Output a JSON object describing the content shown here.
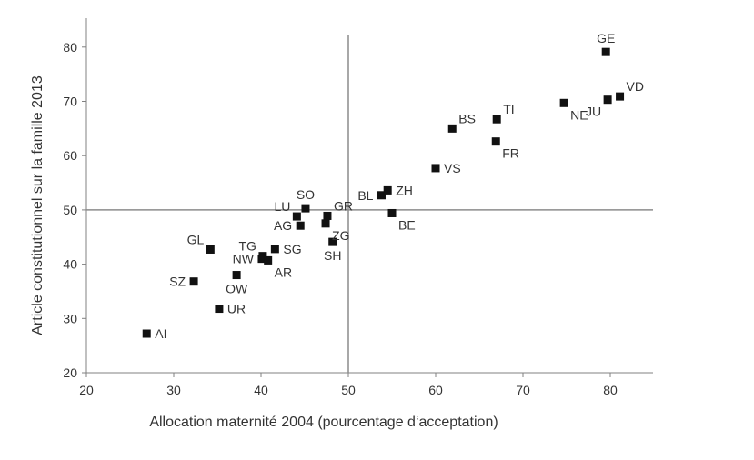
{
  "chart_data": {
    "type": "scatter",
    "xlabel": "Allocation maternité 2004 (pourcentage d‘acceptation)",
    "ylabel": "Article constitutionnel sur la famille 2013",
    "xlim": [
      20,
      85
    ],
    "ylim": [
      20,
      85
    ],
    "xticks": [
      20,
      30,
      40,
      50,
      60,
      70,
      80
    ],
    "yticks": [
      20,
      30,
      40,
      50,
      60,
      70,
      80
    ],
    "reference_lines": {
      "x": 50,
      "y": 50
    },
    "grid": false,
    "points": [
      {
        "label": "AI",
        "x": 26.9,
        "y": 27.2,
        "label_pos": "right"
      },
      {
        "label": "UR",
        "x": 35.2,
        "y": 31.8,
        "label_pos": "right"
      },
      {
        "label": "SZ",
        "x": 32.3,
        "y": 36.8,
        "label_pos": "left"
      },
      {
        "label": "OW",
        "x": 37.2,
        "y": 38.0,
        "label_pos": "below"
      },
      {
        "label": "GL",
        "x": 34.2,
        "y": 42.7,
        "label_pos": "above-left"
      },
      {
        "label": "NW",
        "x": 40.1,
        "y": 41.0,
        "label_pos": "left"
      },
      {
        "label": "TG",
        "x": 40.2,
        "y": 41.5,
        "label_pos": "above-left"
      },
      {
        "label": "AR",
        "x": 40.8,
        "y": 40.7,
        "label_pos": "below-right"
      },
      {
        "label": "SG",
        "x": 41.6,
        "y": 42.8,
        "label_pos": "right"
      },
      {
        "label": "AG",
        "x": 44.5,
        "y": 47.1,
        "label_pos": "left"
      },
      {
        "label": "LU",
        "x": 44.1,
        "y": 48.8,
        "label_pos": "above-left"
      },
      {
        "label": "SO",
        "x": 45.1,
        "y": 50.3,
        "label_pos": "above"
      },
      {
        "label": "GR",
        "x": 47.6,
        "y": 48.9,
        "label_pos": "above-right"
      },
      {
        "label": "ZG",
        "x": 47.4,
        "y": 47.5,
        "label_pos": "below-right"
      },
      {
        "label": "SH",
        "x": 48.2,
        "y": 44.1,
        "label_pos": "below"
      },
      {
        "label": "BL",
        "x": 53.8,
        "y": 52.7,
        "label_pos": "left"
      },
      {
        "label": "ZH",
        "x": 54.5,
        "y": 53.6,
        "label_pos": "right"
      },
      {
        "label": "BE",
        "x": 55.0,
        "y": 49.4,
        "label_pos": "below-right"
      },
      {
        "label": "VS",
        "x": 60.0,
        "y": 57.7,
        "label_pos": "right"
      },
      {
        "label": "BS",
        "x": 61.9,
        "y": 65.0,
        "label_pos": "above-right"
      },
      {
        "label": "TI",
        "x": 67.0,
        "y": 66.7,
        "label_pos": "above-right"
      },
      {
        "label": "FR",
        "x": 66.9,
        "y": 62.6,
        "label_pos": "below-right"
      },
      {
        "label": "NE",
        "x": 74.7,
        "y": 69.7,
        "label_pos": "below-right"
      },
      {
        "label": "JU",
        "x": 79.7,
        "y": 70.3,
        "label_pos": "below-left"
      },
      {
        "label": "VD",
        "x": 81.1,
        "y": 70.9,
        "label_pos": "above-right"
      },
      {
        "label": "GE",
        "x": 79.5,
        "y": 79.1,
        "label_pos": "above"
      }
    ]
  }
}
